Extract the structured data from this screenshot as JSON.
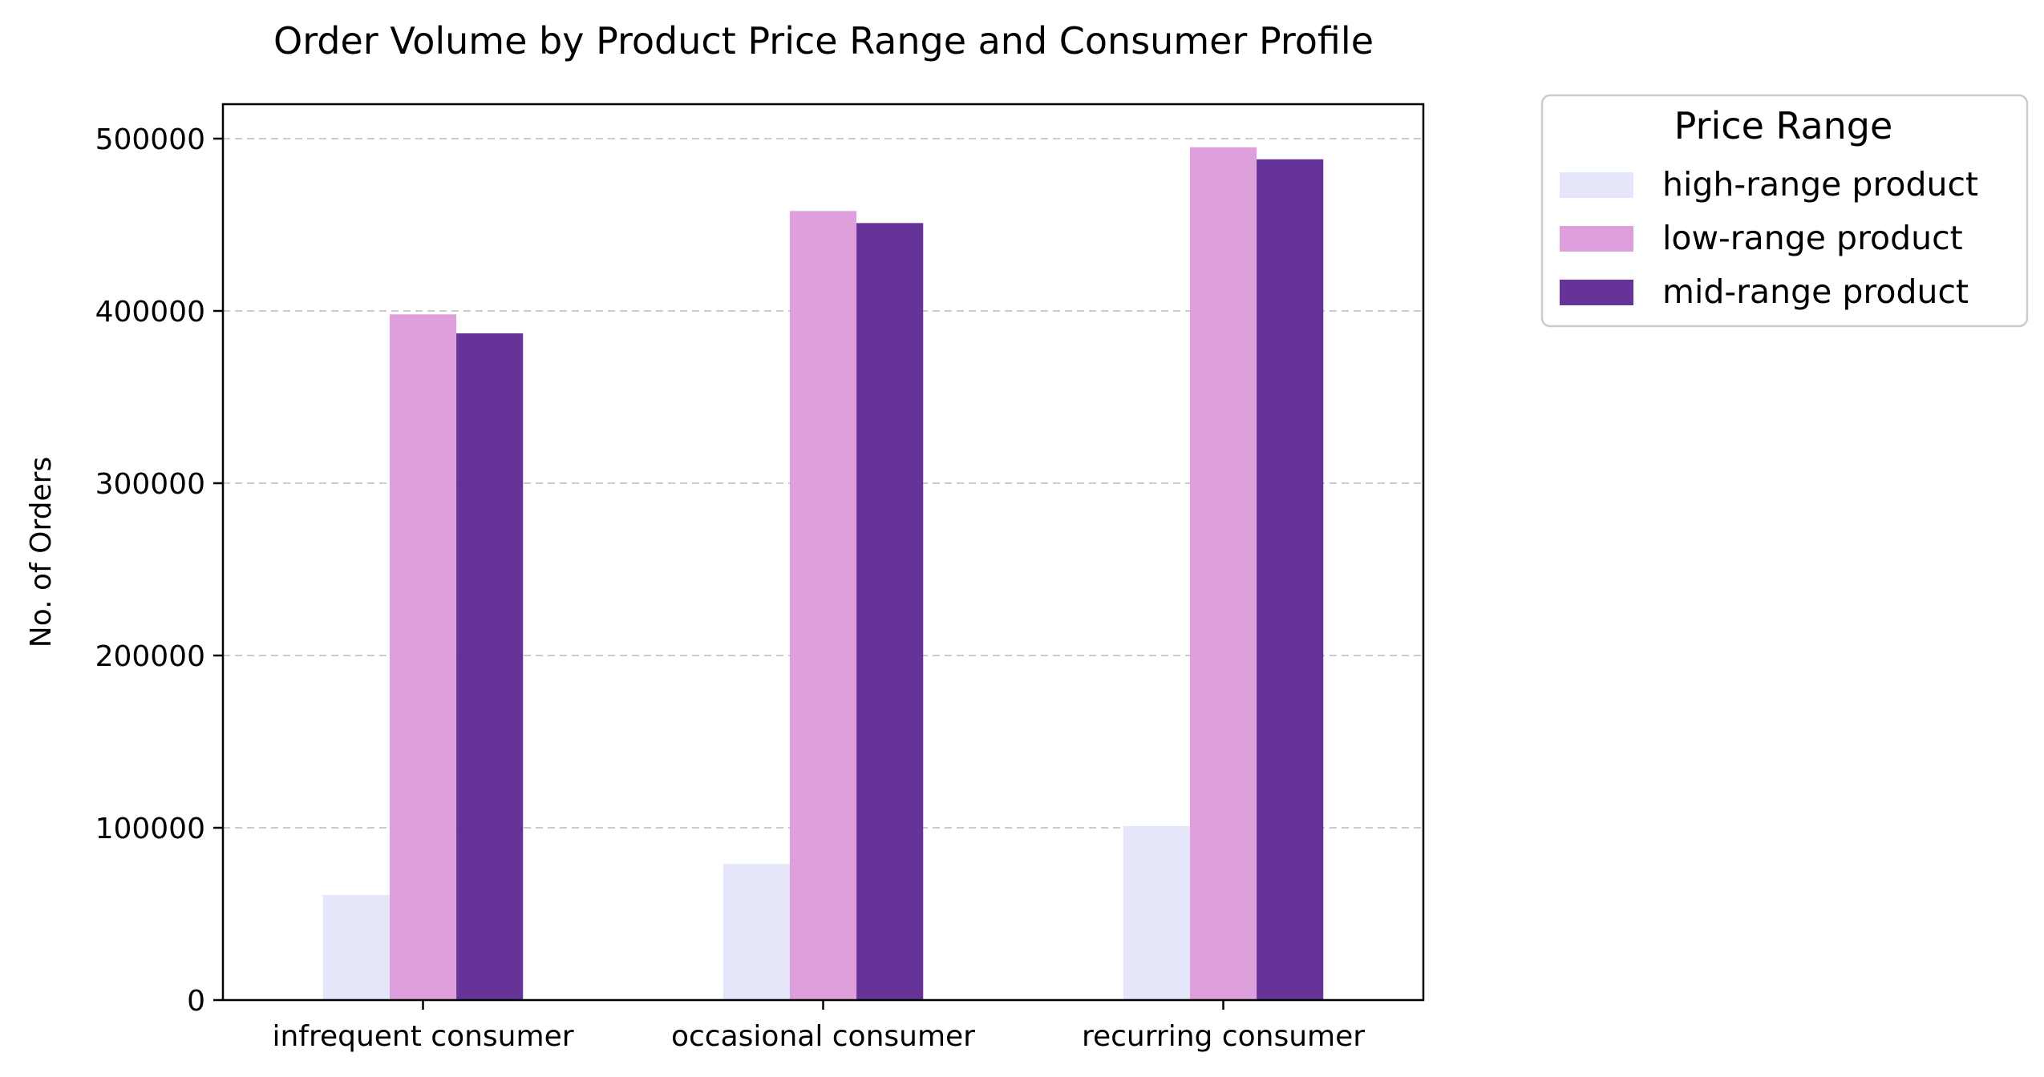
{
  "chart_data": {
    "type": "bar",
    "title": "Order Volume by Product Price Range and Consumer Profile",
    "xlabel": "",
    "ylabel": "No. of Orders",
    "categories": [
      "infrequent consumer",
      "occasional consumer",
      "recurring consumer"
    ],
    "series": [
      {
        "name": "high-range product",
        "color": "#e6e6fa",
        "values": [
          61000,
          79000,
          101000
        ]
      },
      {
        "name": "low-range product",
        "color": "#dda0dd",
        "values": [
          398000,
          458000,
          495000
        ]
      },
      {
        "name": "mid-range product",
        "color": "#663399",
        "values": [
          387000,
          451000,
          488000
        ]
      }
    ],
    "ylim": [
      0,
      520000
    ],
    "yticks": [
      0,
      100000,
      200000,
      300000,
      400000,
      500000
    ],
    "ytick_labels": [
      "0",
      "100000",
      "200000",
      "300000",
      "400000",
      "500000"
    ],
    "grid": {
      "axis": "y",
      "style": "dashed",
      "color": "#cccccc"
    },
    "legend": {
      "title": "Price Range",
      "placement": "outside-top-right"
    }
  }
}
